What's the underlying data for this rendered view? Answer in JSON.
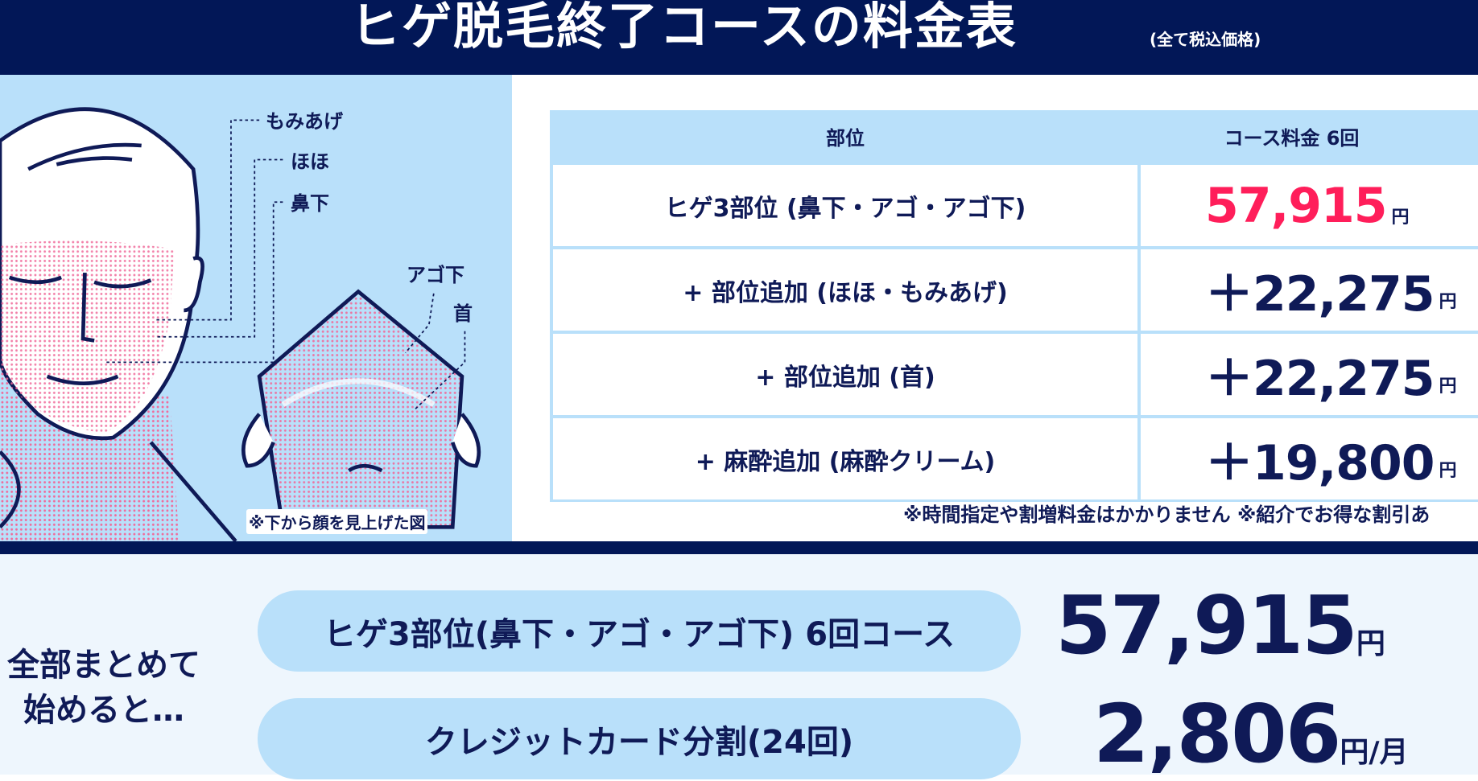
{
  "header": {
    "title": "ヒゲ脱毛終了コースの料金表",
    "tax_note": "(全て税込価格)"
  },
  "illustration": {
    "labels": {
      "sideburns": "もみあげ",
      "cheek": "ほほ",
      "upper_lip": "鼻下",
      "under_chin": "アゴ下",
      "neck": "首"
    },
    "caption": "※下から顔を見上げた図"
  },
  "table": {
    "headers": [
      "部位",
      "コース料金 6回"
    ],
    "rows": [
      {
        "part": "ヒゲ3部位 (鼻下・アゴ・アゴ下)",
        "price": "57,915",
        "unit": "円",
        "color": "#ff1e5a"
      },
      {
        "part": "+ 部位追加 (ほほ・もみあげ)",
        "price": "＋22,275",
        "unit": "円",
        "color": "#0f1a57"
      },
      {
        "part": "+ 部位追加 (首)",
        "price": "＋22,275",
        "unit": "円",
        "color": "#0f1a57"
      },
      {
        "part": "+ 麻酔追加 (麻酔クリーム)",
        "price": "＋19,800",
        "unit": "円",
        "color": "#0f1a57"
      }
    ],
    "note": "※時間指定や割増料金はかかりません ※紹介でお得な割引あ"
  },
  "summary": {
    "lead": "全部まとめて\n始めると…",
    "items": [
      {
        "label": "ヒゲ3部位(鼻下・アゴ・アゴ下) 6回コース",
        "price": "57,915",
        "unit": "円"
      },
      {
        "label": "クレジットカード分割(24回)",
        "price": "2,806",
        "unit": "円/月"
      }
    ]
  },
  "colors": {
    "navy": "#021757",
    "light_blue": "#b9e0fa",
    "accent_pink": "#ff1e5a"
  }
}
